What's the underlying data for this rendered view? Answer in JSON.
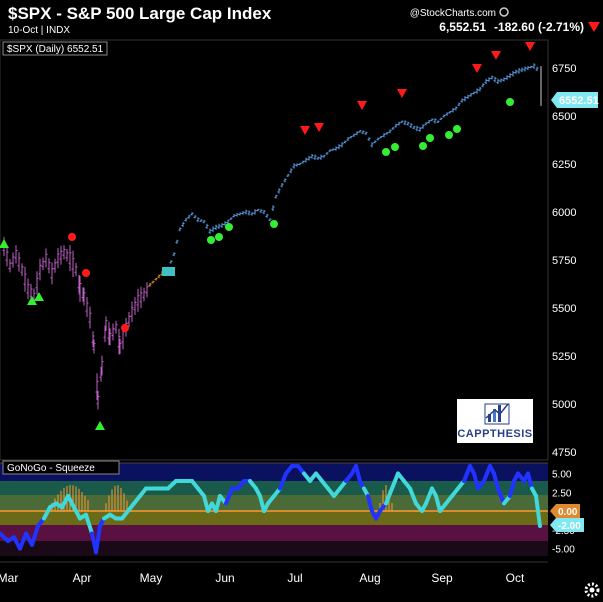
{
  "header": {
    "title": "$SPX - S&P 500 Large Cap Index",
    "subtitle": "10-Oct | INDX",
    "watermark": "@StockCharts.com",
    "last_price": "6,552.51",
    "change": "-182.60 (-2.71%)"
  },
  "price_panel": {
    "legend": "$SPX (Daily) 6552.51",
    "current_value_tag": "6552.51"
  },
  "indicator_panel": {
    "legend": "GoNoGo - Squeeze",
    "value_tags": [
      "0.00",
      "-2.00"
    ]
  },
  "logo": {
    "text": "CAPPTHESIS"
  },
  "colors": {
    "background": "#000000",
    "bars_blue": "#5aa0e8",
    "bars_purple": "#c060c8",
    "bars_orange": "#e8903a",
    "marker_red": "#ff1a1a",
    "marker_green": "#33ee33",
    "gonogo_blue": "#2233ff",
    "gonogo_cyan": "#40d8d8",
    "zero_line": "#ff9a30",
    "tag_cyan": "#7fe8f0"
  },
  "chart_data": [
    {
      "type": "line",
      "title": "$SPX - S&P 500 Large Cap Index",
      "series": [
        {
          "name": "$SPX (Daily)",
          "x": [
            "Mar",
            "Apr",
            "May",
            "Jun",
            "Jul",
            "Aug",
            "Sep",
            "Oct"
          ],
          "values": [
            5800,
            5500,
            5650,
            5950,
            6200,
            6400,
            6550,
            6552.51
          ]
        }
      ],
      "x_ticks": [
        "Mar",
        "Apr",
        "May",
        "Jun",
        "Jul",
        "Aug",
        "Sep",
        "Oct"
      ],
      "y_ticks": [
        4750,
        5000,
        5250,
        5500,
        5750,
        6000,
        6250,
        6500,
        6750
      ],
      "ylim": [
        4750,
        6800
      ],
      "last_value": 6552.51,
      "grid": false
    },
    {
      "type": "line",
      "title": "GoNoGo - Squeeze",
      "y_ticks": [
        5.0,
        2.5,
        0.0,
        -2.5,
        -5.0
      ],
      "y_tick_labels": [
        "5.00",
        "2.50",
        "0.00",
        "-2.50",
        "-5.00"
      ],
      "ylim": [
        -6,
        6
      ],
      "last_value": -2.0
    }
  ]
}
